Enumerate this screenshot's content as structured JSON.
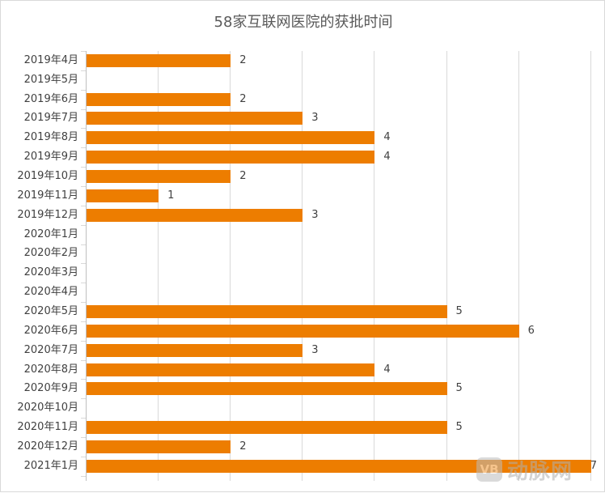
{
  "chart_data": {
    "type": "bar",
    "orientation": "horizontal",
    "title": "58家互联网医院的获批时间",
    "xlabel": "",
    "ylabel": "",
    "xlim": [
      0,
      7
    ],
    "grid": true,
    "legend": null,
    "bar_color": "#ED7D00",
    "categories": [
      "2019年4月",
      "2019年5月",
      "2019年6月",
      "2019年7月",
      "2019年8月",
      "2019年9月",
      "2019年10月",
      "2019年11月",
      "2019年12月",
      "2020年1月",
      "2020年2月",
      "2020年3月",
      "2020年4月",
      "2020年5月",
      "2020年6月",
      "2020年7月",
      "2020年8月",
      "2020年9月",
      "2020年10月",
      "2020年11月",
      "2020年12月",
      "2021年1月"
    ],
    "values": [
      2,
      0,
      2,
      3,
      4,
      4,
      2,
      1,
      3,
      0,
      0,
      0,
      0,
      5,
      6,
      3,
      4,
      5,
      0,
      5,
      2,
      7
    ],
    "data_labels": [
      "2",
      "",
      "2",
      "3",
      "4",
      "4",
      "2",
      "1",
      "3",
      "",
      "",
      "",
      "",
      "5",
      "6",
      "3",
      "4",
      "5",
      "",
      "5",
      "2",
      "7"
    ]
  },
  "watermark": {
    "logo": "VB",
    "text": "动脉网"
  }
}
